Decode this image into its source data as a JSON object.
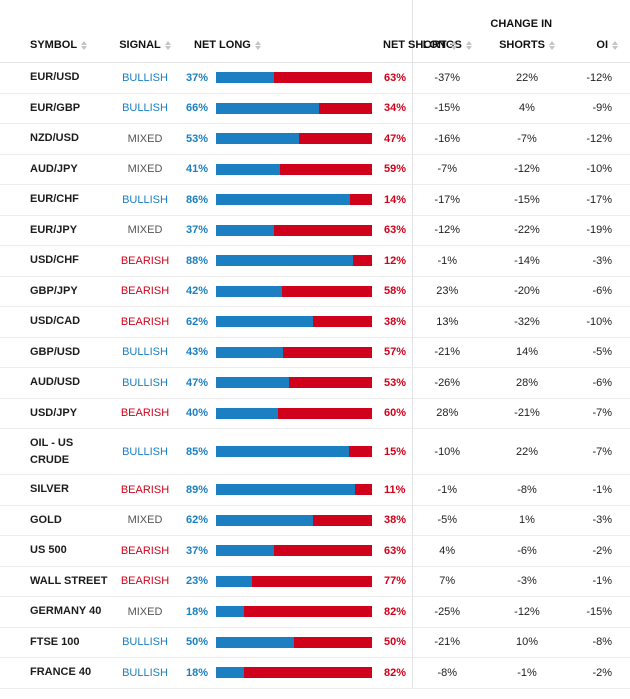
{
  "headers": {
    "change_in": "CHANGE IN",
    "symbol": "SYMBOL",
    "signal": "SIGNAL",
    "net_long": "NET LONG",
    "net_short": "NET SHORT",
    "longs": "LONGS",
    "shorts": "SHORTS",
    "oi": "OI"
  },
  "colors": {
    "bullish": "#1b7fc1",
    "bearish": "#d0021b",
    "mixed": "#555555"
  },
  "rows": [
    {
      "symbol": "EUR/USD",
      "signal": "BULLISH",
      "net_long": 37,
      "net_short": 63,
      "long_pct": "37%",
      "short_pct": "63%",
      "longs": "-37%",
      "shorts": "22%",
      "oi": "-12%"
    },
    {
      "symbol": "EUR/GBP",
      "signal": "BULLISH",
      "net_long": 66,
      "net_short": 34,
      "long_pct": "66%",
      "short_pct": "34%",
      "longs": "-15%",
      "shorts": "4%",
      "oi": "-9%"
    },
    {
      "symbol": "NZD/USD",
      "signal": "MIXED",
      "net_long": 53,
      "net_short": 47,
      "long_pct": "53%",
      "short_pct": "47%",
      "longs": "-16%",
      "shorts": "-7%",
      "oi": "-12%"
    },
    {
      "symbol": "AUD/JPY",
      "signal": "MIXED",
      "net_long": 41,
      "net_short": 59,
      "long_pct": "41%",
      "short_pct": "59%",
      "longs": "-7%",
      "shorts": "-12%",
      "oi": "-10%"
    },
    {
      "symbol": "EUR/CHF",
      "signal": "BULLISH",
      "net_long": 86,
      "net_short": 14,
      "long_pct": "86%",
      "short_pct": "14%",
      "longs": "-17%",
      "shorts": "-15%",
      "oi": "-17%"
    },
    {
      "symbol": "EUR/JPY",
      "signal": "MIXED",
      "net_long": 37,
      "net_short": 63,
      "long_pct": "37%",
      "short_pct": "63%",
      "longs": "-12%",
      "shorts": "-22%",
      "oi": "-19%"
    },
    {
      "symbol": "USD/CHF",
      "signal": "BEARISH",
      "net_long": 88,
      "net_short": 12,
      "long_pct": "88%",
      "short_pct": "12%",
      "longs": "-1%",
      "shorts": "-14%",
      "oi": "-3%"
    },
    {
      "symbol": "GBP/JPY",
      "signal": "BEARISH",
      "net_long": 42,
      "net_short": 58,
      "long_pct": "42%",
      "short_pct": "58%",
      "longs": "23%",
      "shorts": "-20%",
      "oi": "-6%"
    },
    {
      "symbol": "USD/CAD",
      "signal": "BEARISH",
      "net_long": 62,
      "net_short": 38,
      "long_pct": "62%",
      "short_pct": "38%",
      "longs": "13%",
      "shorts": "-32%",
      "oi": "-10%"
    },
    {
      "symbol": "GBP/USD",
      "signal": "BULLISH",
      "net_long": 43,
      "net_short": 57,
      "long_pct": "43%",
      "short_pct": "57%",
      "longs": "-21%",
      "shorts": "14%",
      "oi": "-5%"
    },
    {
      "symbol": "AUD/USD",
      "signal": "BULLISH",
      "net_long": 47,
      "net_short": 53,
      "long_pct": "47%",
      "short_pct": "53%",
      "longs": "-26%",
      "shorts": "28%",
      "oi": "-6%"
    },
    {
      "symbol": "USD/JPY",
      "signal": "BEARISH",
      "net_long": 40,
      "net_short": 60,
      "long_pct": "40%",
      "short_pct": "60%",
      "longs": "28%",
      "shorts": "-21%",
      "oi": "-7%"
    },
    {
      "symbol": "OIL - US CRUDE",
      "signal": "BULLISH",
      "net_long": 85,
      "net_short": 15,
      "long_pct": "85%",
      "short_pct": "15%",
      "longs": "-10%",
      "shorts": "22%",
      "oi": "-7%"
    },
    {
      "symbol": "SILVER",
      "signal": "BEARISH",
      "net_long": 89,
      "net_short": 11,
      "long_pct": "89%",
      "short_pct": "11%",
      "longs": "-1%",
      "shorts": "-8%",
      "oi": "-1%"
    },
    {
      "symbol": "GOLD",
      "signal": "MIXED",
      "net_long": 62,
      "net_short": 38,
      "long_pct": "62%",
      "short_pct": "38%",
      "longs": "-5%",
      "shorts": "1%",
      "oi": "-3%"
    },
    {
      "symbol": "US 500",
      "signal": "BEARISH",
      "net_long": 37,
      "net_short": 63,
      "long_pct": "37%",
      "short_pct": "63%",
      "longs": "4%",
      "shorts": "-6%",
      "oi": "-2%"
    },
    {
      "symbol": "WALL STREET",
      "signal": "BEARISH",
      "net_long": 23,
      "net_short": 77,
      "long_pct": "23%",
      "short_pct": "77%",
      "longs": "7%",
      "shorts": "-3%",
      "oi": "-1%"
    },
    {
      "symbol": "GERMANY 40",
      "signal": "MIXED",
      "net_long": 18,
      "net_short": 82,
      "long_pct": "18%",
      "short_pct": "82%",
      "longs": "-25%",
      "shorts": "-12%",
      "oi": "-15%"
    },
    {
      "symbol": "FTSE 100",
      "signal": "BULLISH",
      "net_long": 50,
      "net_short": 50,
      "long_pct": "50%",
      "short_pct": "50%",
      "longs": "-21%",
      "shorts": "10%",
      "oi": "-8%"
    },
    {
      "symbol": "FRANCE 40",
      "signal": "BULLISH",
      "net_long": 18,
      "net_short": 82,
      "long_pct": "18%",
      "short_pct": "82%",
      "longs": "-8%",
      "shorts": "-1%",
      "oi": "-2%"
    }
  ]
}
